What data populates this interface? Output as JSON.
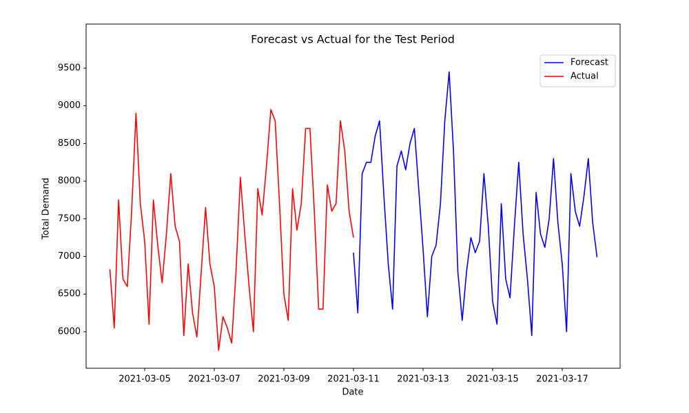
{
  "chart_data": {
    "type": "line",
    "title": "Forecast vs Actual for the Test Period",
    "xlabel": "Date",
    "ylabel": "Total Demand",
    "x": [
      "2021-03-04 00:00",
      "2021-03-04 03:00",
      "2021-03-04 06:00",
      "2021-03-04 09:00",
      "2021-03-04 12:00",
      "2021-03-04 15:00",
      "2021-03-04 18:00",
      "2021-03-04 21:00",
      "2021-03-05 00:00",
      "2021-03-05 03:00",
      "2021-03-05 06:00",
      "2021-03-05 09:00",
      "2021-03-05 12:00",
      "2021-03-05 15:00",
      "2021-03-05 18:00",
      "2021-03-05 21:00",
      "2021-03-06 00:00",
      "2021-03-06 03:00",
      "2021-03-06 06:00",
      "2021-03-06 09:00",
      "2021-03-06 12:00",
      "2021-03-06 15:00",
      "2021-03-06 18:00",
      "2021-03-06 21:00",
      "2021-03-07 00:00",
      "2021-03-07 03:00",
      "2021-03-07 06:00",
      "2021-03-07 09:00",
      "2021-03-07 12:00",
      "2021-03-07 15:00",
      "2021-03-07 18:00",
      "2021-03-07 21:00",
      "2021-03-08 00:00",
      "2021-03-08 03:00",
      "2021-03-08 06:00",
      "2021-03-08 09:00",
      "2021-03-08 12:00",
      "2021-03-08 15:00",
      "2021-03-08 18:00",
      "2021-03-08 21:00",
      "2021-03-09 00:00",
      "2021-03-09 03:00",
      "2021-03-09 06:00",
      "2021-03-09 09:00",
      "2021-03-09 12:00",
      "2021-03-09 15:00",
      "2021-03-09 18:00",
      "2021-03-09 21:00",
      "2021-03-10 00:00",
      "2021-03-10 03:00",
      "2021-03-10 06:00",
      "2021-03-10 09:00",
      "2021-03-10 12:00",
      "2021-03-10 15:00",
      "2021-03-10 18:00",
      "2021-03-10 21:00",
      "2021-03-11 00:00",
      "2021-03-11 03:00",
      "2021-03-11 06:00",
      "2021-03-11 09:00",
      "2021-03-11 12:00",
      "2021-03-11 15:00",
      "2021-03-11 18:00",
      "2021-03-11 21:00",
      "2021-03-12 00:00",
      "2021-03-12 03:00",
      "2021-03-12 06:00",
      "2021-03-12 09:00",
      "2021-03-12 12:00",
      "2021-03-12 15:00",
      "2021-03-12 18:00",
      "2021-03-12 21:00",
      "2021-03-13 00:00",
      "2021-03-13 03:00",
      "2021-03-13 06:00",
      "2021-03-13 09:00",
      "2021-03-13 12:00",
      "2021-03-13 15:00",
      "2021-03-13 18:00",
      "2021-03-13 21:00",
      "2021-03-14 00:00",
      "2021-03-14 03:00",
      "2021-03-14 06:00",
      "2021-03-14 09:00",
      "2021-03-14 12:00",
      "2021-03-14 15:00",
      "2021-03-14 18:00",
      "2021-03-14 21:00",
      "2021-03-15 00:00",
      "2021-03-15 03:00",
      "2021-03-15 06:00",
      "2021-03-15 09:00",
      "2021-03-15 12:00",
      "2021-03-15 15:00",
      "2021-03-15 18:00",
      "2021-03-15 21:00",
      "2021-03-16 00:00",
      "2021-03-16 03:00",
      "2021-03-16 06:00",
      "2021-03-16 09:00",
      "2021-03-16 12:00",
      "2021-03-16 15:00",
      "2021-03-16 18:00",
      "2021-03-16 21:00",
      "2021-03-17 00:00",
      "2021-03-17 03:00",
      "2021-03-17 06:00",
      "2021-03-17 09:00",
      "2021-03-17 12:00",
      "2021-03-17 15:00",
      "2021-03-17 18:00",
      "2021-03-17 21:00",
      "2021-03-18 00:00"
    ],
    "series": [
      {
        "name": "Forecast",
        "color": "#0000ff",
        "values": [
          null,
          null,
          null,
          null,
          null,
          null,
          null,
          null,
          null,
          null,
          null,
          null,
          null,
          null,
          null,
          null,
          null,
          null,
          null,
          null,
          null,
          null,
          null,
          null,
          null,
          null,
          null,
          null,
          null,
          null,
          null,
          null,
          null,
          null,
          null,
          null,
          null,
          null,
          null,
          null,
          null,
          null,
          null,
          null,
          null,
          null,
          null,
          null,
          null,
          null,
          null,
          null,
          null,
          null,
          null,
          null,
          7050,
          6250,
          8100,
          8250,
          8250,
          8600,
          8800,
          7800,
          6900,
          6300,
          8200,
          8400,
          8150,
          8500,
          8700,
          7900,
          7100,
          6200,
          7000,
          7150,
          7700,
          8800,
          9450,
          8400,
          6800,
          6150,
          6800,
          7250,
          7050,
          7200,
          8100,
          7400,
          6400,
          6100,
          7700,
          6700,
          6450,
          7400,
          8250,
          7300,
          6700,
          5950,
          7850,
          7300,
          7120,
          7500,
          8300,
          7450,
          6900,
          6000,
          8100,
          7600,
          7400,
          7800,
          8300,
          7450,
          6990
        ]
      },
      {
        "name": "Actual",
        "color": "#ff0000",
        "values": [
          6830,
          6050,
          7750,
          6700,
          6600,
          7600,
          8900,
          7700,
          7200,
          6100,
          7750,
          7150,
          6650,
          7300,
          8100,
          7400,
          7200,
          5950,
          6900,
          6250,
          5930,
          6800,
          7650,
          6900,
          6600,
          5750,
          6200,
          6050,
          5850,
          6800,
          8050,
          7300,
          6600,
          6000,
          7900,
          7550,
          8200,
          8950,
          8800,
          7700,
          6500,
          6150,
          7900,
          7350,
          7700,
          8700,
          8700,
          7600,
          6300,
          6300,
          7950,
          7600,
          7700,
          8800,
          8400,
          7600,
          7250,
          null,
          null,
          null,
          null,
          null,
          null,
          null,
          null,
          null,
          null,
          null,
          null,
          null,
          null,
          null,
          null,
          null,
          null,
          null,
          null,
          null,
          null,
          null,
          null,
          null,
          null,
          null,
          null,
          null,
          null,
          null,
          null,
          null,
          null,
          null,
          null,
          null,
          null,
          null,
          null,
          null,
          null,
          null,
          null,
          null,
          null,
          null,
          null,
          null,
          null,
          null,
          null,
          null,
          null,
          null,
          null
        ]
      }
    ],
    "xlim": [
      "2021-03-03 07:36",
      "2021-03-18 15:55"
    ],
    "xticks": [
      "2021-03-05",
      "2021-03-07",
      "2021-03-09",
      "2021-03-11",
      "2021-03-13",
      "2021-03-15",
      "2021-03-17"
    ],
    "ylim": [
      5515,
      10085
    ],
    "yticks": [
      6000,
      6500,
      7000,
      7500,
      8000,
      8500,
      9000,
      9500
    ],
    "legend": "upper right"
  }
}
